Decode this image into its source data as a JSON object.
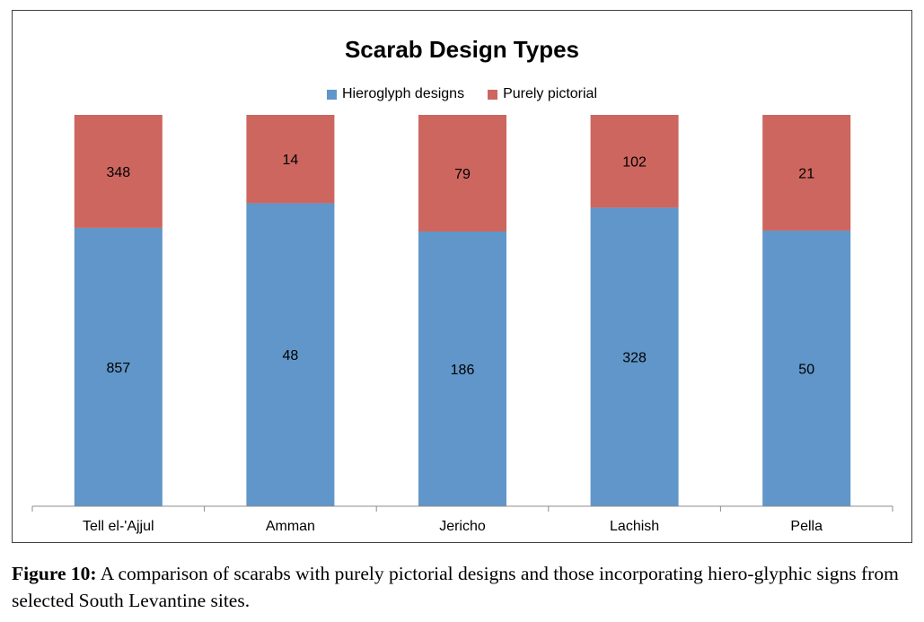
{
  "caption": {
    "label": "Figure 10:",
    "text": " A comparison of scarabs with purely pictorial designs and those incorporating hiero-glyphic signs from selected South Levantine sites."
  },
  "chart_data": {
    "type": "bar",
    "stacked": true,
    "normalized": true,
    "title": "Scarab Design Types",
    "xlabel": "",
    "ylabel": "",
    "legend_position": "top",
    "grid": false,
    "categories": [
      "Tell el-'Ajjul",
      "Amman",
      "Jericho",
      "Lachish",
      "Pella"
    ],
    "series": [
      {
        "name": "Hieroglyph designs",
        "color": "#6096C9",
        "values": [
          857,
          48,
          186,
          328,
          50
        ]
      },
      {
        "name": "Purely pictorial",
        "color": "#CD665F",
        "values": [
          348,
          14,
          79,
          102,
          21
        ]
      }
    ]
  }
}
